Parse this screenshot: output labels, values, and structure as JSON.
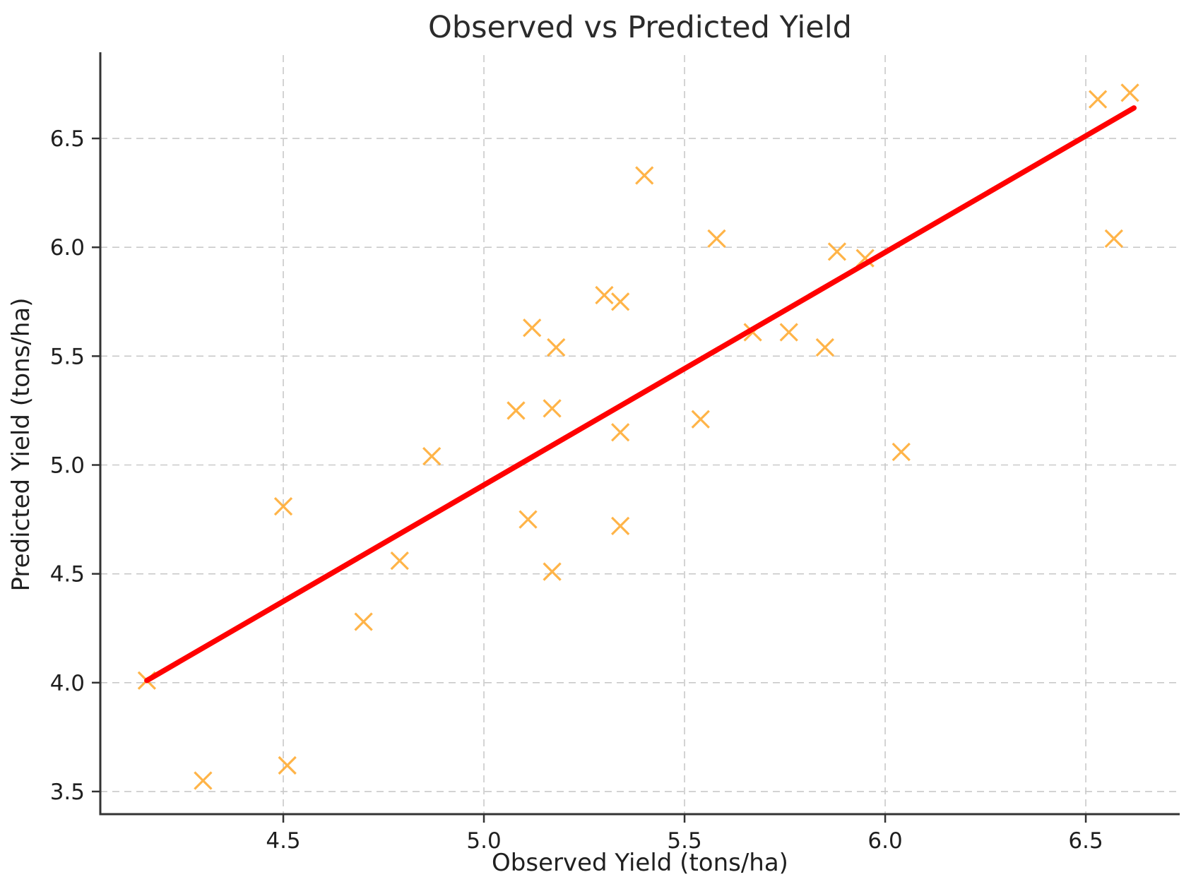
{
  "title": "Observed vs Predicted Yield",
  "xlabel": "Observed Yield (tons/ha)",
  "ylabel": "Predicted Yield (tons/ha)",
  "chart_data": {
    "type": "scatter",
    "title": "Observed vs Predicted Yield",
    "xlabel": "Observed Yield (tons/ha)",
    "ylabel": "Predicted Yield (tons/ha)",
    "xlim": [
      4.044,
      6.734
    ],
    "ylim": [
      3.396,
      6.883
    ],
    "xticks": [
      4.5,
      5.0,
      5.5,
      6.0,
      6.5
    ],
    "yticks": [
      3.5,
      4.0,
      4.5,
      5.0,
      5.5,
      6.0,
      6.5
    ],
    "grid": true,
    "grid_style": "dashed",
    "legend": "none",
    "series": [
      {
        "name": "observed-vs-predicted-points",
        "marker": "x",
        "color": "#ffa728",
        "points": [
          [
            4.16,
            4.01
          ],
          [
            4.3,
            3.55
          ],
          [
            4.51,
            3.62
          ],
          [
            4.5,
            4.81
          ],
          [
            4.7,
            4.28
          ],
          [
            4.79,
            4.56
          ],
          [
            4.87,
            5.04
          ],
          [
            5.08,
            5.25
          ],
          [
            5.11,
            4.75
          ],
          [
            5.12,
            5.63
          ],
          [
            5.17,
            4.51
          ],
          [
            5.17,
            5.26
          ],
          [
            5.18,
            5.54
          ],
          [
            5.3,
            5.78
          ],
          [
            5.34,
            5.75
          ],
          [
            5.34,
            5.15
          ],
          [
            5.34,
            4.72
          ],
          [
            5.4,
            6.33
          ],
          [
            5.54,
            5.21
          ],
          [
            5.58,
            6.04
          ],
          [
            5.67,
            5.61
          ],
          [
            5.76,
            5.61
          ],
          [
            5.85,
            5.54
          ],
          [
            5.88,
            5.98
          ],
          [
            5.95,
            5.95
          ],
          [
            6.04,
            5.06
          ],
          [
            6.53,
            6.68
          ],
          [
            6.57,
            6.04
          ],
          [
            6.61,
            6.71
          ]
        ]
      },
      {
        "name": "regression-line",
        "type": "line",
        "color": "#ff0000",
        "from": [
          4.16,
          4.01
        ],
        "to": [
          6.62,
          6.64
        ]
      }
    ]
  },
  "style": {
    "marker_color": "#ffa728",
    "line_color": "#ff0000",
    "grid_color": "#c9c9c9",
    "spine_color": "#333333",
    "text_color": "#1f1f1f",
    "background": "#ffffff"
  }
}
